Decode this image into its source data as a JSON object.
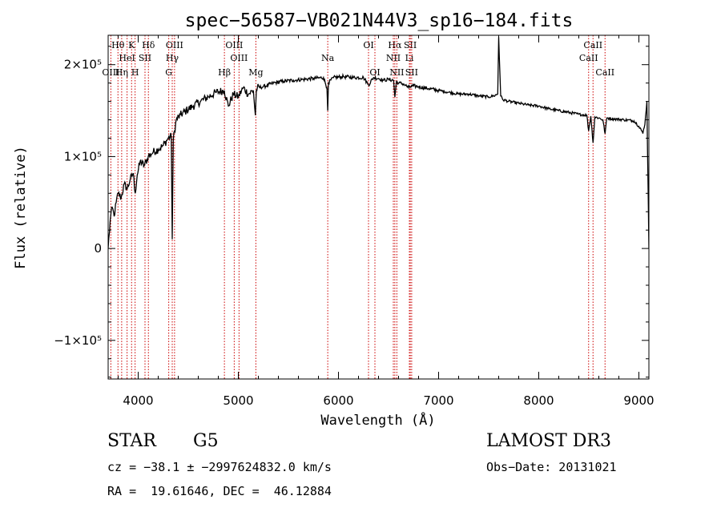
{
  "chart_data": {
    "type": "line",
    "title": "spec−56587−VB021N44V3_sp16−184.fits",
    "xlabel": "Wavelength (Å)",
    "ylabel": "Flux (relative)",
    "xlim": [
      3700,
      9100
    ],
    "ylim": [
      -142000,
      232000
    ],
    "x_ticks": [
      {
        "value": 4000,
        "label": "4000"
      },
      {
        "value": 5000,
        "label": "5000"
      },
      {
        "value": 6000,
        "label": "6000"
      },
      {
        "value": 7000,
        "label": "7000"
      },
      {
        "value": 8000,
        "label": "8000"
      },
      {
        "value": 9000,
        "label": "9000"
      }
    ],
    "y_ticks": [
      {
        "value": -100000,
        "label": "−1×10⁵"
      },
      {
        "value": 0,
        "label": "0"
      },
      {
        "value": 100000,
        "label": "1×10⁵"
      },
      {
        "value": 200000,
        "label": "2×10⁵"
      }
    ],
    "series": [
      {
        "color": "#000000",
        "x": [
          3700,
          3720,
          3740,
          3760,
          3780,
          3800,
          3830,
          3860,
          3890,
          3920,
          3950,
          3970,
          3990,
          4020,
          4060,
          4100,
          4150,
          4200,
          4250,
          4300,
          4330,
          4340,
          4350,
          4380,
          4420,
          4480,
          4550,
          4620,
          4700,
          4780,
          4860,
          4900,
          4950,
          5000,
          5050,
          5100,
          5150,
          5170,
          5180,
          5190,
          5250,
          5350,
          5450,
          5550,
          5650,
          5750,
          5850,
          5885,
          5893,
          5900,
          5950,
          6050,
          6150,
          6250,
          6300,
          6350,
          6400,
          6450,
          6500,
          6550,
          6563,
          6580,
          6600,
          6650,
          6700,
          6750,
          6800,
          6900,
          7000,
          7100,
          7200,
          7300,
          7400,
          7500,
          7550,
          7590,
          7600,
          7620,
          7640,
          7700,
          7800,
          7900,
          8000,
          8100,
          8200,
          8300,
          8400,
          8480,
          8498,
          8520,
          8542,
          8560,
          8600,
          8640,
          8662,
          8680,
          8750,
          8850,
          8950,
          9000,
          9020,
          9040,
          9060,
          9080,
          9100
        ],
        "y": [
          0,
          30000,
          45000,
          35000,
          50000,
          60000,
          55000,
          70000,
          65000,
          75000,
          82000,
          60000,
          80000,
          95000,
          90000,
          100000,
          105000,
          108000,
          112000,
          120000,
          122000,
          10000,
          118000,
          140000,
          145000,
          150000,
          155000,
          160000,
          165000,
          170000,
          172000,
          155000,
          168000,
          165000,
          175000,
          168000,
          172000,
          145000,
          172000,
          175000,
          176000,
          180000,
          182000,
          183000,
          184000,
          185000,
          186000,
          175000,
          150000,
          180000,
          186000,
          187000,
          186000,
          186000,
          178000,
          186000,
          185000,
          183000,
          184000,
          183000,
          165000,
          182000,
          180000,
          179000,
          175000,
          177000,
          176000,
          174000,
          172000,
          170000,
          168000,
          168000,
          166000,
          165000,
          166000,
          168000,
          230000,
          166000,
          162000,
          160000,
          158000,
          156000,
          155000,
          152000,
          150000,
          148000,
          146000,
          145000,
          128000,
          144000,
          115000,
          143000,
          142000,
          140000,
          125000,
          142000,
          141000,
          140000,
          139000,
          133000,
          130000,
          125000,
          135000,
          160000,
          0
        ]
      }
    ],
    "line_markers": [
      {
        "label": "Hθ",
        "wave": 3798,
        "row": 1
      },
      {
        "label": "OIII",
        "wave": 3727,
        "row": 3
      },
      {
        "label": "HeI",
        "wave": 3889,
        "row": 2
      },
      {
        "label": "K",
        "wave": 3934,
        "row": 1
      },
      {
        "label": "Hη",
        "wave": 3835,
        "row": 3
      },
      {
        "label": "H",
        "wave": 3969,
        "row": 3
      },
      {
        "label": "SII",
        "wave": 4068,
        "row": 2
      },
      {
        "label": "Hδ",
        "wave": 4102,
        "row": 1
      },
      {
        "label": "OIII",
        "wave": 4363,
        "row": 1
      },
      {
        "label": "Hγ",
        "wave": 4340,
        "row": 2
      },
      {
        "label": "G",
        "wave": 4305,
        "row": 3
      },
      {
        "label": "Hβ",
        "wave": 4861,
        "row": 3
      },
      {
        "label": "OIII",
        "wave": 4959,
        "row": 1
      },
      {
        "label": "OIII",
        "wave": 5007,
        "row": 2
      },
      {
        "label": "Mg",
        "wave": 5175,
        "row": 3
      },
      {
        "label": "Na",
        "wave": 5893,
        "row": 2
      },
      {
        "label": "OI",
        "wave": 6300,
        "row": 1
      },
      {
        "label": "OI",
        "wave": 6364,
        "row": 3
      },
      {
        "label": "Hα",
        "wave": 6563,
        "row": 1
      },
      {
        "label": "NII",
        "wave": 6548,
        "row": 2
      },
      {
        "label": "NII",
        "wave": 6583,
        "row": 3
      },
      {
        "label": "SII",
        "wave": 6717,
        "row": 1
      },
      {
        "label": "Li",
        "wave": 6708,
        "row": 2
      },
      {
        "label": "SII",
        "wave": 6731,
        "row": 3
      },
      {
        "label": "CaII",
        "wave": 8542,
        "row": 1
      },
      {
        "label": "CaII",
        "wave": 8498,
        "row": 2
      },
      {
        "label": "CaII",
        "wave": 8662,
        "row": 3
      }
    ]
  },
  "info": {
    "class_label": "STAR",
    "subclass_label": "G5",
    "survey_label": "LAMOST DR3",
    "cz_line": "cz = −38.1 ± −2997624832.0 km/s",
    "obs_date_line": "Obs−Date: 20131021",
    "radec_line": "RA =  19.61646, DEC =  46.12884"
  }
}
